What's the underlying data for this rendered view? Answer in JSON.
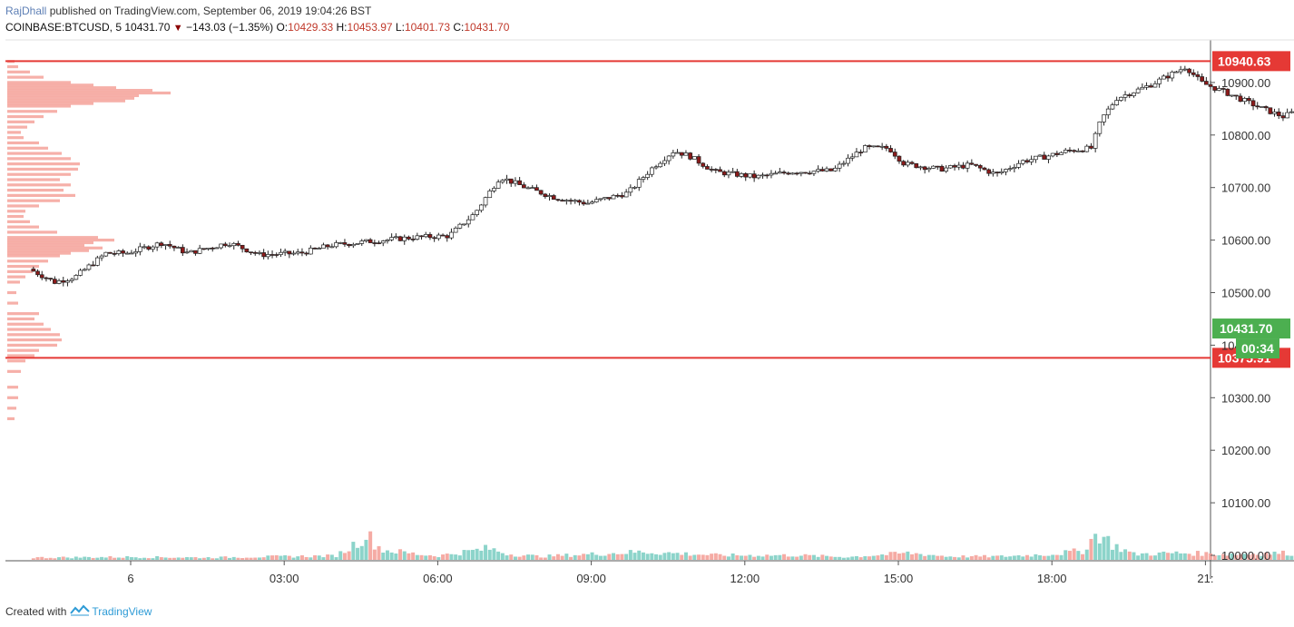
{
  "header": {
    "author": "RajDhall",
    "published_text": "published on TradingView.com, September 06, 2019 19:04:26 BST",
    "symbol": "COINBASE:BTCUSD, 5",
    "last_price": "10431.70",
    "change": "−143.03 (−1.35%)",
    "open_label": "O:",
    "open": "10429.33",
    "high_label": "H:",
    "high": "10453.97",
    "low_label": "L:",
    "low": "10401.73",
    "close_label": "C:",
    "close": "10431.70"
  },
  "footer": {
    "created_with": "Created with",
    "brand": "TradingView"
  },
  "chart_data": {
    "type": "candlestick",
    "title": "COINBASE:BTCUSD, 5",
    "x_ticks": [
      "6",
      "03:00",
      "06:00",
      "09:00",
      "12:00",
      "15:00",
      "18:00",
      "21:"
    ],
    "y_ticks": [
      "10000.00",
      "10100.00",
      "10200.00",
      "10300.00",
      "10400.00",
      "10500.00",
      "10600.00",
      "10700.00",
      "10800.00",
      "10900.00"
    ],
    "ylim": [
      9985,
      11035
    ],
    "time_range_hours": [
      22.0,
      45.9
    ],
    "horizontal_lines": [
      {
        "value": 10940.63,
        "label": "10940.63",
        "color": "#e53935"
      },
      {
        "value": 10375.91,
        "label": "10375.91",
        "color": "#e53935"
      }
    ],
    "last_price_label": {
      "value": 10431.7,
      "label": "10431.70",
      "color": "#4caf50"
    },
    "countdown_label": "00:34",
    "colors": {
      "up": "#ffffff",
      "down": "#8b1a1a",
      "wick": "#222222",
      "volume_up": "#7fcfc4",
      "volume_down": "#f4a29a",
      "profile": "#f4a29a"
    },
    "candle_anchors": [
      [
        22.1,
        10545
      ],
      [
        22.6,
        10520
      ],
      [
        23.0,
        10530
      ],
      [
        23.6,
        10575
      ],
      [
        24.0,
        10575
      ],
      [
        24.7,
        10595
      ],
      [
        25.2,
        10575
      ],
      [
        26.0,
        10595
      ],
      [
        26.6,
        10572
      ],
      [
        27.4,
        10575
      ],
      [
        28.0,
        10590
      ],
      [
        28.8,
        10598
      ],
      [
        29.6,
        10605
      ],
      [
        30.3,
        10608
      ],
      [
        30.8,
        10650
      ],
      [
        31.3,
        10720
      ],
      [
        31.8,
        10700
      ],
      [
        32.4,
        10680
      ],
      [
        33.0,
        10670
      ],
      [
        33.8,
        10690
      ],
      [
        34.3,
        10740
      ],
      [
        34.7,
        10770
      ],
      [
        35.0,
        10760
      ],
      [
        35.5,
        10730
      ],
      [
        36.3,
        10720
      ],
      [
        37.0,
        10730
      ],
      [
        37.8,
        10732
      ],
      [
        38.4,
        10775
      ],
      [
        38.9,
        10775
      ],
      [
        39.2,
        10745
      ],
      [
        39.9,
        10735
      ],
      [
        40.5,
        10743
      ],
      [
        41.0,
        10725
      ],
      [
        41.5,
        10750
      ],
      [
        42.0,
        10760
      ],
      [
        42.4,
        10770
      ],
      [
        42.85,
        10775
      ],
      [
        43.05,
        10830
      ],
      [
        43.35,
        10870
      ],
      [
        44.0,
        10895
      ],
      [
        44.7,
        10930
      ],
      [
        45.0,
        10900
      ],
      [
        45.5,
        10880
      ],
      [
        46.2,
        10850
      ],
      [
        46.6,
        10835
      ],
      [
        47.2,
        10860
      ],
      [
        47.5,
        10885
      ],
      [
        48.2,
        10880
      ],
      [
        48.8,
        10870
      ],
      [
        49.2,
        10895
      ],
      [
        49.6,
        10900
      ],
      [
        50.0,
        10875
      ],
      [
        50.5,
        10880
      ],
      [
        51.0,
        10890
      ],
      [
        51.35,
        10880
      ],
      [
        51.55,
        10860
      ],
      [
        51.72,
        10745
      ],
      [
        51.82,
        10600
      ],
      [
        51.9,
        10480
      ],
      [
        52.0,
        10420
      ],
      [
        52.1,
        10431.7
      ]
    ],
    "volume_anchors": [
      [
        22.1,
        4
      ],
      [
        24.0,
        5
      ],
      [
        25.5,
        4
      ],
      [
        27.0,
        6
      ],
      [
        28.0,
        7
      ],
      [
        28.3,
        22
      ],
      [
        28.6,
        45
      ],
      [
        28.9,
        18
      ],
      [
        29.6,
        10
      ],
      [
        30.0,
        7
      ],
      [
        31.0,
        20
      ],
      [
        31.4,
        10
      ],
      [
        32.0,
        6
      ],
      [
        34.0,
        14
      ],
      [
        35.5,
        8
      ],
      [
        37.0,
        8
      ],
      [
        38.0,
        5
      ],
      [
        39.2,
        12
      ],
      [
        40.0,
        6
      ],
      [
        41.0,
        6
      ],
      [
        42.0,
        10
      ],
      [
        42.6,
        16
      ],
      [
        42.9,
        48
      ],
      [
        43.2,
        26
      ],
      [
        43.6,
        10
      ],
      [
        44.5,
        12
      ],
      [
        45.5,
        10
      ],
      [
        46.5,
        12
      ],
      [
        47.5,
        8
      ],
      [
        48.5,
        8
      ],
      [
        49.5,
        10
      ],
      [
        50.5,
        12
      ],
      [
        51.0,
        15
      ],
      [
        51.35,
        25
      ],
      [
        51.55,
        60
      ],
      [
        51.72,
        100
      ],
      [
        51.82,
        150
      ],
      [
        51.9,
        225
      ],
      [
        52.0,
        45
      ],
      [
        52.1,
        15
      ]
    ],
    "volume_profile": [
      [
        10940,
        8
      ],
      [
        10930,
        12
      ],
      [
        10920,
        25
      ],
      [
        10910,
        40
      ],
      [
        10900,
        70
      ],
      [
        10895,
        95
      ],
      [
        10890,
        120
      ],
      [
        10885,
        160
      ],
      [
        10880,
        180
      ],
      [
        10875,
        145
      ],
      [
        10870,
        140
      ],
      [
        10865,
        130
      ],
      [
        10860,
        95
      ],
      [
        10855,
        70
      ],
      [
        10845,
        55
      ],
      [
        10835,
        40
      ],
      [
        10825,
        30
      ],
      [
        10815,
        22
      ],
      [
        10805,
        15
      ],
      [
        10795,
        18
      ],
      [
        10785,
        35
      ],
      [
        10775,
        45
      ],
      [
        10765,
        60
      ],
      [
        10755,
        70
      ],
      [
        10745,
        80
      ],
      [
        10735,
        78
      ],
      [
        10725,
        70
      ],
      [
        10715,
        58
      ],
      [
        10705,
        70
      ],
      [
        10695,
        62
      ],
      [
        10685,
        75
      ],
      [
        10675,
        58
      ],
      [
        10665,
        35
      ],
      [
        10655,
        20
      ],
      [
        10645,
        18
      ],
      [
        10635,
        25
      ],
      [
        10625,
        35
      ],
      [
        10615,
        55
      ],
      [
        10605,
        100
      ],
      [
        10600,
        118
      ],
      [
        10595,
        95
      ],
      [
        10590,
        85
      ],
      [
        10585,
        105
      ],
      [
        10580,
        90
      ],
      [
        10575,
        70
      ],
      [
        10570,
        58
      ],
      [
        10560,
        45
      ],
      [
        10550,
        35
      ],
      [
        10540,
        28
      ],
      [
        10530,
        20
      ],
      [
        10520,
        14
      ],
      [
        10500,
        10
      ],
      [
        10480,
        12
      ],
      [
        10460,
        35
      ],
      [
        10450,
        30
      ],
      [
        10440,
        40
      ],
      [
        10430,
        48
      ],
      [
        10420,
        58
      ],
      [
        10410,
        60
      ],
      [
        10400,
        55
      ],
      [
        10390,
        35
      ],
      [
        10380,
        30
      ],
      [
        10370,
        20
      ],
      [
        10350,
        15
      ],
      [
        10320,
        12
      ],
      [
        10300,
        12
      ],
      [
        10280,
        10
      ],
      [
        10260,
        8
      ]
    ]
  }
}
